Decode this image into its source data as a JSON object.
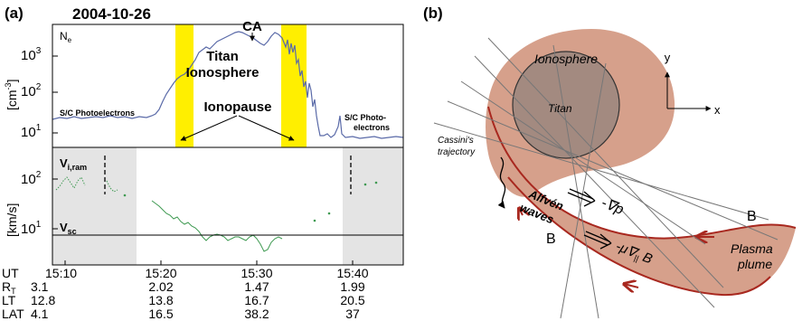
{
  "panel_a": {
    "label": "(a)",
    "date": "2004-10-26",
    "ca_label": "CA",
    "top": {
      "quantity": "N",
      "quantity_sub": "e",
      "unit": "[cm",
      "unit_exp": "-3",
      "unit_close": "]",
      "ticks": [
        {
          "base": "10",
          "exp": "3"
        },
        {
          "base": "10",
          "exp": "2"
        },
        {
          "base": "10",
          "exp": "1"
        }
      ],
      "annotations": {
        "titan_line1": "Titan",
        "titan_line2": "Ionosphere",
        "ionopause": "Ionopause",
        "photo_left": "S/C Photoelectrons",
        "photo_right_1": "S/C Photo-",
        "photo_right_2": "electrons"
      }
    },
    "bottom": {
      "quantity": "V",
      "quantity_sub": "i,ram",
      "vsc": "V",
      "vsc_sub": "sc",
      "unit": "[km/s]",
      "ticks": [
        {
          "base": "10",
          "exp": "2"
        },
        {
          "base": "10",
          "exp": "1"
        }
      ]
    },
    "table": {
      "rows": [
        {
          "label": "UT",
          "values": [
            "15:10",
            "15:20",
            "15:30",
            "15:40"
          ]
        },
        {
          "label": "R",
          "label_sub": "T",
          "values": [
            "3.1",
            "2.02",
            "1.47",
            "1.99"
          ]
        },
        {
          "label": "LT",
          "values": [
            "12.8",
            "13.8",
            "16.7",
            "20.5"
          ]
        },
        {
          "label": "LAT",
          "values": [
            "4.1",
            "16.5",
            "38.2",
            "37"
          ]
        }
      ]
    }
  },
  "panel_b": {
    "label": "(b)",
    "ionosphere": "Ionosphere",
    "titan": "Titan",
    "axis_y": "y",
    "axis_x": "x",
    "cassini_1": "Cassini's",
    "cassini_2": "trajectory",
    "alfven_1": "Alfvén",
    "alfven_2": "waves",
    "force_p": "-∇p",
    "force_b": "-μ∇",
    "force_b_sub": "||",
    "force_b_end": " B",
    "b_right": "B",
    "b_left": "B",
    "plume_1": "Plasma",
    "plume_2": "plume"
  },
  "colors": {
    "ionopause_band": "#ffef00",
    "density_trace": "#5a6aa8",
    "velocity_trace": "#3f9a52",
    "shade": "#e4e4e4",
    "ionosphere_fill": "#d6a08b",
    "titan_fill": "#a38a80",
    "field_line": "#a8281f"
  }
}
